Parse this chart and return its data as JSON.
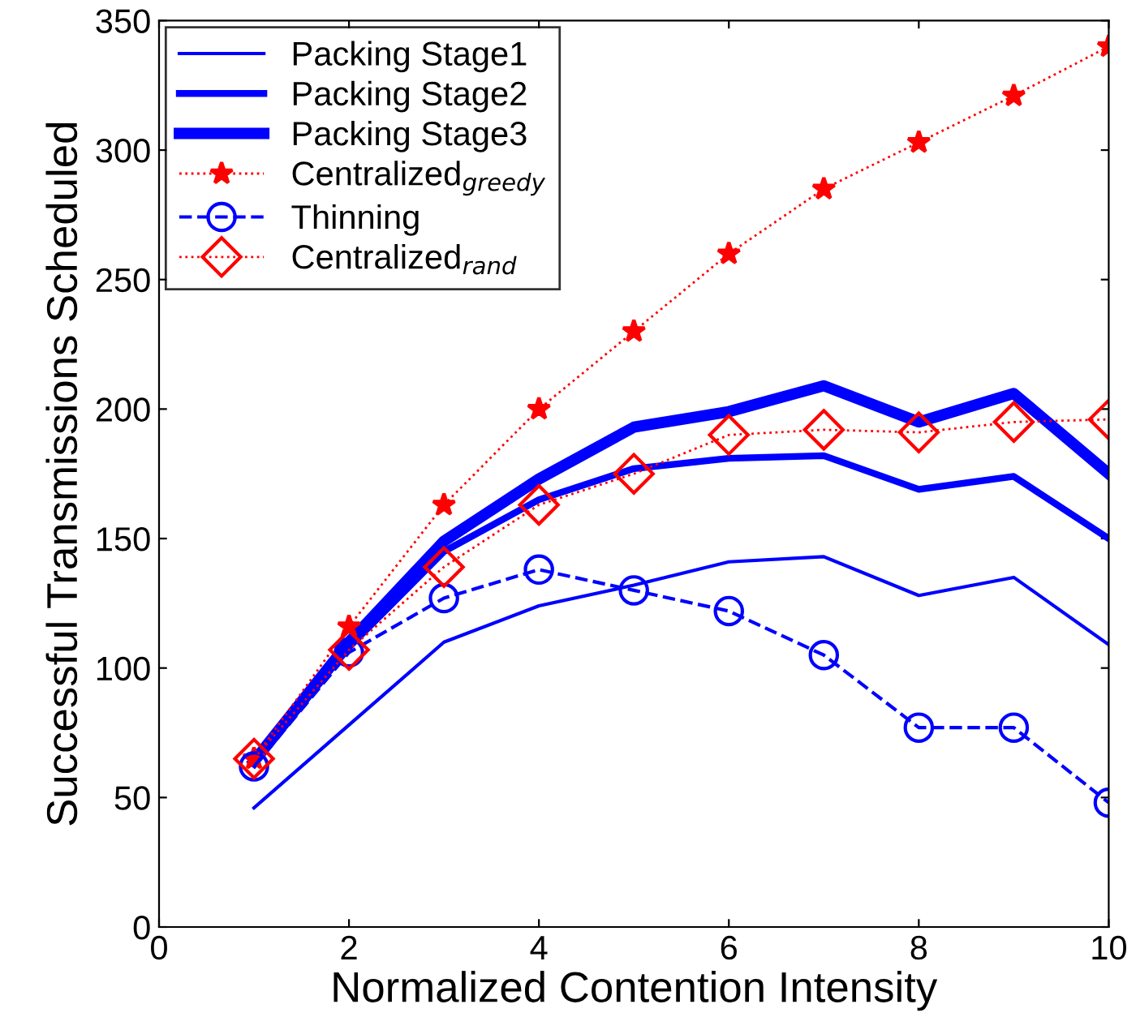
{
  "chart_data": {
    "type": "line",
    "xlabel": "Normalized Contention Intensity",
    "ylabel": "Successful Transmissions Scheduled",
    "x": [
      1,
      2,
      3,
      4,
      5,
      6,
      7,
      8,
      9,
      10
    ],
    "xlim": [
      0,
      10
    ],
    "xticks": [
      0,
      2,
      4,
      6,
      8,
      10
    ],
    "ylim": [
      0,
      350
    ],
    "yticks": [
      0,
      50,
      100,
      150,
      200,
      250,
      300,
      350
    ],
    "grid": false,
    "legend": "top left",
    "series": [
      {
        "name": "Packing Stage1",
        "color": "#0000ff",
        "marker": "none",
        "line_style": "solid",
        "values": [
          46,
          78,
          110,
          124,
          132,
          141,
          143,
          128,
          135,
          109
        ]
      },
      {
        "name": "Packing Stage2",
        "color": "#0000ff",
        "marker": "none",
        "line_style": "solid",
        "values": [
          63,
          108,
          145,
          165,
          177,
          181,
          182,
          169,
          174,
          150
        ]
      },
      {
        "name": "Packing Stage3",
        "color": "#0000ff",
        "marker": "none",
        "line_style": "solid",
        "values": [
          64,
          110,
          149,
          173,
          193,
          199,
          209,
          195,
          206,
          175
        ]
      },
      {
        "name": "Centralized$_{greedy}$",
        "color": "#ff0000",
        "marker": "star",
        "line_style": "dotted",
        "values": [
          65,
          116,
          163,
          200,
          230,
          260,
          285,
          303,
          321,
          340
        ]
      },
      {
        "name": "Thinning",
        "color": "#0000ff",
        "marker": "circle",
        "line_style": "dashed",
        "values": [
          62,
          106,
          127,
          138,
          130,
          122,
          105,
          77,
          77,
          48
        ]
      },
      {
        "name": "Centralized$_{rand}$",
        "color": "#ff0000",
        "marker": "diamond",
        "line_style": "dotted",
        "values": [
          65,
          107,
          139,
          163,
          175,
          190,
          192,
          191,
          195,
          196
        ]
      }
    ]
  }
}
